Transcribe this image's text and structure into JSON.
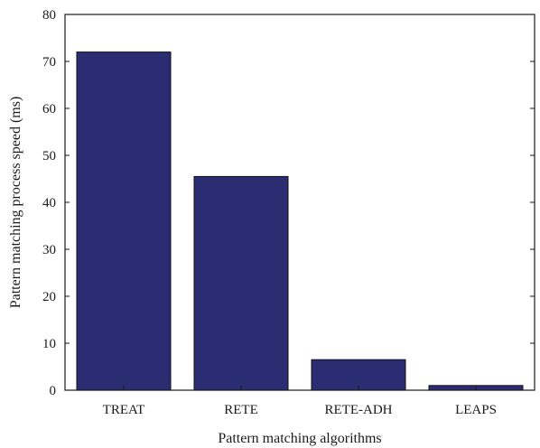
{
  "chart_data": {
    "type": "bar",
    "title": "",
    "xlabel": "Pattern matching algorithms",
    "ylabel": "Pattern matching process speed (ms)",
    "categories": [
      "TREAT",
      "RETE",
      "RETE-ADH",
      "LEAPS"
    ],
    "values": [
      72,
      45.5,
      6.5,
      1
    ],
    "ylim": [
      0,
      80
    ],
    "yticks": [
      "0",
      "10",
      "20",
      "30",
      "40",
      "50",
      "60",
      "70",
      "80"
    ],
    "grid": false,
    "legend": "none",
    "bar_color": "#2b2d72",
    "bar_edge_color": "#111111"
  }
}
